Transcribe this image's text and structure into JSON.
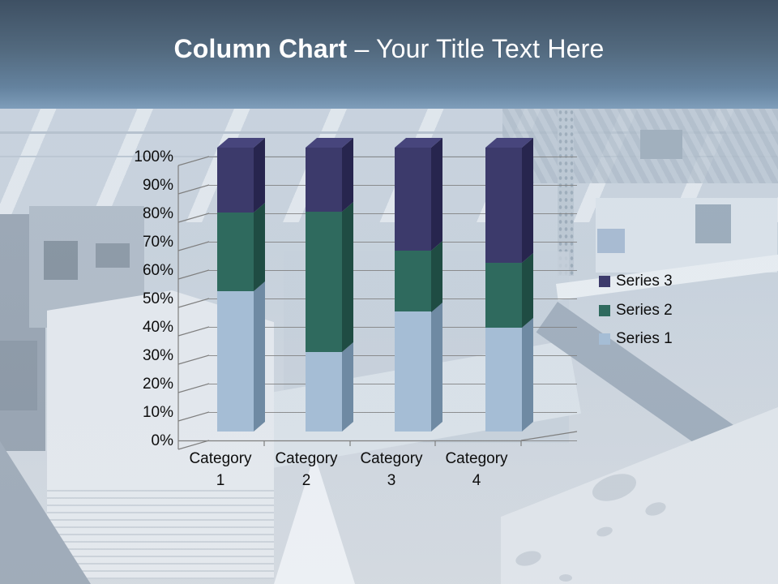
{
  "header": {
    "title_bold": "Column Chart",
    "title_rest": "– Your Title Text Here"
  },
  "colors": {
    "header_gradient_top": "#3E5063",
    "header_gradient_bottom": "#7E9DBA",
    "title_text": "#FFFFFF",
    "gridline": "#7F7F7F",
    "axis_text": "#0D0D0D"
  },
  "chart_data": {
    "type": "bar",
    "variant": "3d-column-100pct-stacked",
    "title": "",
    "xlabel": "",
    "ylabel": "",
    "categories": [
      "Category 1",
      "Category 2",
      "Category 3",
      "Category 4"
    ],
    "series": [
      {
        "name": "Series 1",
        "values": [
          4.3,
          2.5,
          3.5,
          4.5
        ],
        "color": "#A5BDD5",
        "side_color": "#6F8AA3",
        "top_color": "#B9CCDE"
      },
      {
        "name": "Series 2",
        "values": [
          2.4,
          4.4,
          1.8,
          2.8
        ],
        "color": "#2F6A5E",
        "side_color": "#1F4C43",
        "top_color": "#3B7A6C"
      },
      {
        "name": "Series 3",
        "values": [
          2.0,
          2.0,
          3.0,
          5.0
        ],
        "color": "#3C3A6B",
        "side_color": "#27254E",
        "top_color": "#47457C"
      }
    ],
    "stacked_percentages": {
      "Category 1": [
        49.4,
        27.6,
        23.0
      ],
      "Category 2": [
        28.1,
        49.4,
        22.5
      ],
      "Category 3": [
        42.2,
        21.7,
        36.1
      ],
      "Category 4": [
        36.6,
        22.8,
        40.7
      ]
    },
    "y_axis": {
      "min": 0,
      "max": 100,
      "tick_step": 10,
      "ticks": [
        "0%",
        "10%",
        "20%",
        "30%",
        "40%",
        "50%",
        "60%",
        "70%",
        "80%",
        "90%",
        "100%"
      ]
    },
    "grid": true,
    "legend_position": "right",
    "legend_order": [
      "Series 3",
      "Series 2",
      "Series 1"
    ]
  }
}
